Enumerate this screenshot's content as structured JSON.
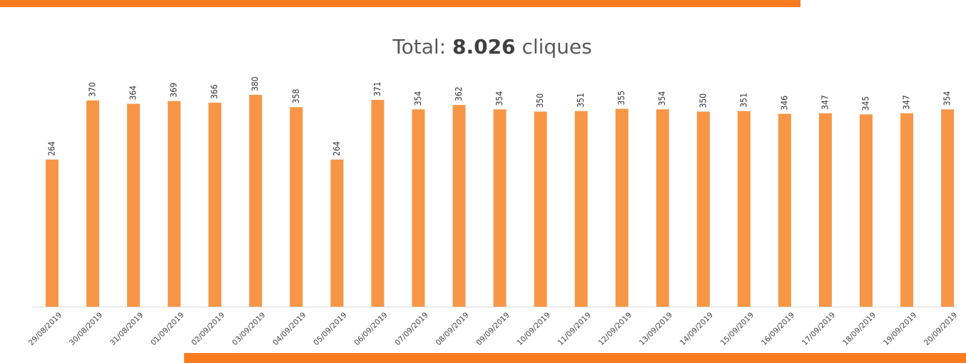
{
  "chart_data": {
    "type": "bar",
    "title": {
      "label": "Total:",
      "total": "8.026",
      "unit": "cliques"
    },
    "categories": [
      "29/08/2019",
      "30/08/2019",
      "31/08/2019",
      "01/09/2019",
      "02/09/2019",
      "03/09/2019",
      "04/09/2019",
      "05/09/2019",
      "06/09/2019",
      "07/09/2019",
      "08/09/2019",
      "09/09/2019",
      "10/09/2019",
      "11/09/2019",
      "12/09/2019",
      "13/09/2019",
      "14/09/2019",
      "15/09/2019",
      "16/09/2019",
      "17/09/2019",
      "18/09/2019",
      "19/09/2019",
      "20/09/2019"
    ],
    "values": [
      264,
      370,
      364,
      369,
      366,
      380,
      358,
      264,
      371,
      354,
      362,
      354,
      350,
      351,
      355,
      354,
      350,
      351,
      346,
      347,
      345,
      347,
      354
    ],
    "color": "#f79646",
    "ylim": [
      0,
      400
    ]
  }
}
